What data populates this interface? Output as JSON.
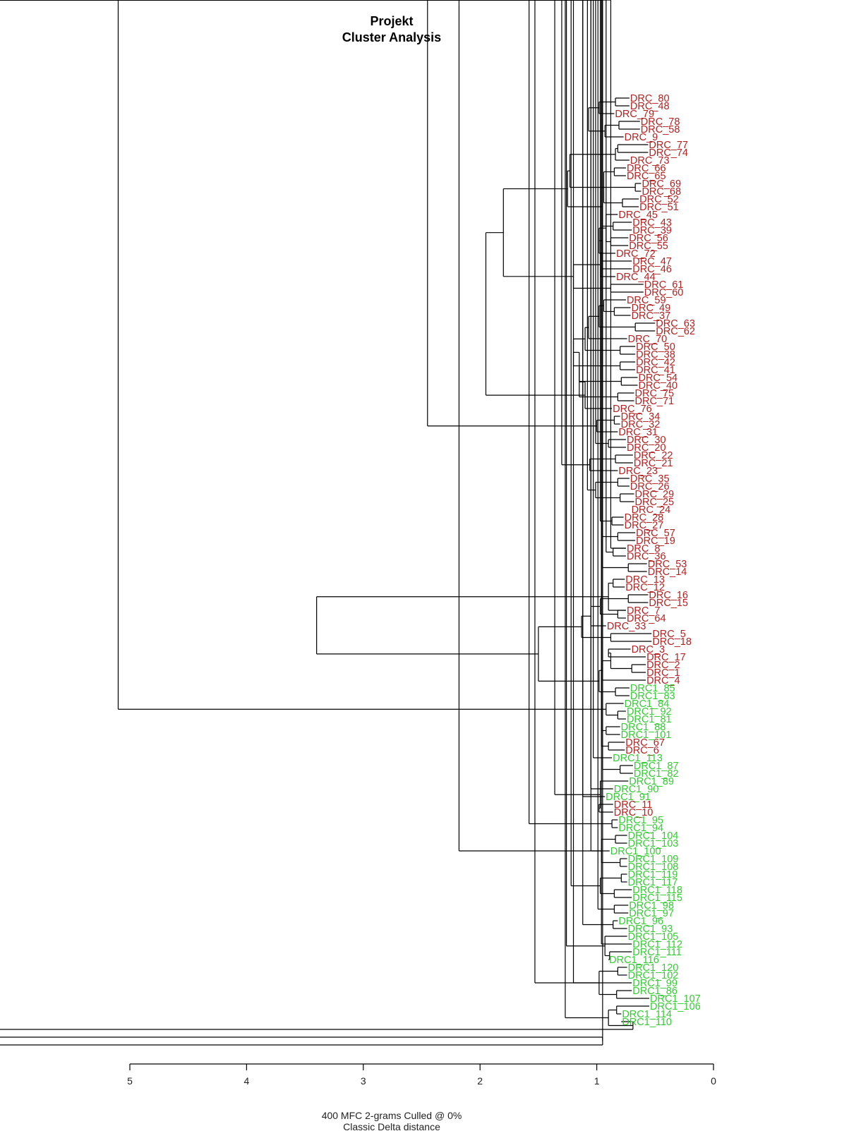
{
  "chart_data": {
    "type": "dendrogram",
    "title": "Projekt",
    "subtitle": "Cluster Analysis",
    "xlabel_line1": "400 MFC 2-grams Culled @ 0%",
    "xlabel_line2": "Classic Delta distance",
    "xlim": [
      5,
      0
    ],
    "ticks": [
      5,
      4,
      3,
      2,
      1,
      0
    ],
    "tick_labels": [
      "5",
      "4",
      "3",
      "2",
      "1",
      "0"
    ],
    "colors": {
      "DRC": "#b22222",
      "DRC1": "#33cc33"
    },
    "leaves": [
      "DRC_80",
      "DRC_48",
      "DRC_79",
      "DRC_78",
      "DRC_58",
      "DRC_9",
      "DRC_77",
      "DRC_74",
      "DRC_73",
      "DRC_66",
      "DRC_65",
      "DRC_69",
      "DRC_68",
      "DRC_52",
      "DRC_51",
      "DRC_45",
      "DRC_43",
      "DRC_39",
      "DRC_56",
      "DRC_55",
      "DRC_72",
      "DRC_47",
      "DRC_46",
      "DRC_44",
      "DRC_61",
      "DRC_60",
      "DRC_59",
      "DRC_49",
      "DRC_37",
      "DRC_63",
      "DRC_62",
      "DRC_70",
      "DRC_50",
      "DRC_38",
      "DRC_42",
      "DRC_41",
      "DRC_54",
      "DRC_40",
      "DRC_75",
      "DRC_71",
      "DRC_76",
      "DRC_34",
      "DRC_32",
      "DRC_31",
      "DRC_30",
      "DRC_20",
      "DRC_22",
      "DRC_21",
      "DRC_23",
      "DRC_35",
      "DRC_26",
      "DRC_29",
      "DRC_25",
      "DRC_24",
      "DRC_28",
      "DRC_27",
      "DRC_57",
      "DRC_19",
      "DRC_8",
      "DRC_36",
      "DRC_53",
      "DRC_14",
      "DRC_13",
      "DRC_12",
      "DRC_16",
      "DRC_15",
      "DRC_7",
      "DRC_64",
      "DRC_33",
      "DRC_5",
      "DRC_18",
      "DRC_3",
      "DRC_17",
      "DRC_2",
      "DRC_1",
      "DRC_4",
      "DRC1_85",
      "DRC1_83",
      "DRC1_84",
      "DRC1_92",
      "DRC1_81",
      "DRC1_88",
      "DRC1_101",
      "DRC_67",
      "DRC_6",
      "DRC1_113",
      "DRC1_87",
      "DRC1_82",
      "DRC1_89",
      "DRC1_90",
      "DRC1_91",
      "DRC_11",
      "DRC_10",
      "DRC1_95",
      "DRC1_94",
      "DRC1_104",
      "DRC1_103",
      "DRC1_100",
      "DRC1_109",
      "DRC1_108",
      "DRC1_119",
      "DRC1_117",
      "DRC1_118",
      "DRC1_115",
      "DRC1_98",
      "DRC1_97",
      "DRC1_96",
      "DRC1_93",
      "DRC1_105",
      "DRC1_112",
      "DRC1_111",
      "DRC1_116",
      "DRC1_120",
      "DRC1_102",
      "DRC1_99",
      "DRC1_86",
      "DRC1_107",
      "DRC1_106",
      "DRC1_114",
      "DRC1_110"
    ],
    "leaf_heights": [
      0.72,
      0.72,
      0.85,
      0.63,
      0.63,
      0.77,
      0.56,
      0.56,
      0.72,
      0.75,
      0.75,
      0.62,
      0.62,
      0.64,
      0.64,
      0.82,
      0.7,
      0.7,
      0.73,
      0.73,
      0.84,
      0.7,
      0.7,
      0.84,
      0.6,
      0.6,
      0.75,
      0.71,
      0.71,
      0.5,
      0.5,
      0.74,
      0.67,
      0.67,
      0.67,
      0.67,
      0.65,
      0.65,
      0.68,
      0.68,
      0.87,
      0.8,
      0.8,
      0.82,
      0.75,
      0.75,
      0.69,
      0.69,
      0.82,
      0.72,
      0.72,
      0.68,
      0.68,
      0.71,
      0.77,
      0.77,
      0.67,
      0.67,
      0.75,
      0.75,
      0.57,
      0.57,
      0.76,
      0.76,
      0.56,
      0.56,
      0.75,
      0.75,
      0.92,
      0.53,
      0.53,
      0.71,
      0.58,
      0.58,
      0.58,
      0.58,
      0.72,
      0.72,
      0.77,
      0.75,
      0.75,
      0.8,
      0.8,
      0.76,
      0.76,
      0.87,
      0.69,
      0.69,
      0.73,
      0.86,
      0.93,
      0.86,
      0.86,
      0.82,
      0.82,
      0.74,
      0.74,
      0.89,
      0.74,
      0.74,
      0.74,
      0.74,
      0.7,
      0.7,
      0.73,
      0.73,
      0.82,
      0.74,
      0.74,
      0.7,
      0.7,
      0.9,
      0.74,
      0.74,
      0.7,
      0.7,
      0.55,
      0.55,
      0.79,
      0.79
    ],
    "merges": [
      [
        -1,
        -2,
        0.84
      ],
      [
        -4,
        -5,
        0.81
      ],
      [
        -7,
        -8,
        0.82
      ],
      [
        -10,
        -11,
        0.85
      ],
      [
        -12,
        -13,
        0.67
      ],
      [
        -14,
        -15,
        0.78
      ],
      [
        -17,
        -18,
        0.86
      ],
      [
        -19,
        -20,
        0.88
      ],
      [
        -22,
        -23,
        0.96
      ],
      [
        -25,
        -26,
        0.88
      ],
      [
        -28,
        -29,
        0.85
      ],
      [
        -30,
        -31,
        0.67
      ],
      [
        -33,
        -34,
        0.8
      ],
      [
        -35,
        -36,
        0.8
      ],
      [
        -37,
        -38,
        0.79
      ],
      [
        -39,
        -40,
        0.82
      ],
      [
        -42,
        -43,
        0.85
      ],
      [
        -45,
        -46,
        0.9
      ],
      [
        -47,
        -48,
        0.84
      ],
      [
        -50,
        -51,
        0.82
      ],
      [
        -52,
        -53,
        0.8
      ],
      [
        -55,
        -56,
        0.87
      ],
      [
        -57,
        -58,
        0.82
      ],
      [
        -59,
        -60,
        0.86
      ],
      [
        -61,
        -62,
        0.73
      ],
      [
        -63,
        -64,
        0.86
      ],
      [
        -65,
        -66,
        0.73
      ],
      [
        -67,
        -68,
        0.82
      ],
      [
        -70,
        -71,
        0.88
      ],
      [
        -72,
        -73,
        0.9
      ],
      [
        -74,
        -75,
        0.7
      ],
      [
        -77,
        -78,
        0.84
      ],
      [
        -80,
        -81,
        0.82
      ],
      [
        -82,
        -83,
        0.92
      ],
      [
        -84,
        -85,
        0.9
      ],
      [
        -87,
        -88,
        0.8
      ],
      [
        -92,
        -93,
        0.98
      ],
      [
        -94,
        -95,
        0.87
      ],
      [
        -96,
        -97,
        0.84
      ],
      [
        -99,
        -100,
        0.8
      ],
      [
        -101,
        -102,
        0.79
      ],
      [
        -103,
        -104,
        0.85
      ],
      [
        -105,
        -106,
        0.85
      ],
      [
        -107,
        -108,
        0.86
      ],
      [
        -111,
        -112,
        0.89
      ],
      [
        -113,
        -114,
        0.82
      ],
      [
        -116,
        -117,
        0.83
      ],
      [
        -118,
        -119,
        0.83
      ],
      [
        -120,
        -121,
        0.69
      ],
      [
        -122,
        -123,
        0.95
      ],
      [
        1,
        -3,
        0.98
      ],
      [
        2,
        -6,
        0.93
      ],
      [
        3,
        -9,
        0.84
      ],
      [
        4,
        6,
        0.94
      ],
      [
        5,
        7,
        0.95
      ],
      [
        51,
        52,
        1.07
      ],
      [
        54,
        53,
        1.23
      ],
      [
        -16,
        8,
        0.92
      ],
      [
        58,
        -21,
        0.98
      ],
      [
        59,
        9,
        0.95
      ],
      [
        60,
        -24,
        0.97
      ],
      [
        61,
        10,
        1.2
      ],
      [
        55,
        57,
        1.25
      ],
      [
        63,
        62,
        1.8
      ],
      [
        -27,
        11,
        0.94
      ],
      [
        65,
        12,
        0.98
      ],
      [
        66,
        -32,
        1.07
      ],
      [
        67,
        13,
        1.1
      ],
      [
        68,
        14,
        1.2
      ],
      [
        69,
        15,
        1.15
      ],
      [
        70,
        16,
        1.15
      ],
      [
        71,
        -41,
        1.1
      ],
      [
        64,
        72,
        1.95
      ],
      [
        17,
        -44,
        1
      ],
      [
        75,
        18,
        1.01
      ],
      [
        19,
        -49,
        1.06
      ],
      [
        20,
        21,
        1.01
      ],
      [
        78,
        22,
        0.97
      ],
      [
        79,
        -59,
        0.88
      ],
      [
        80,
        23,
        0.95
      ],
      [
        81,
        24,
        0.92
      ],
      [
        82,
        25,
        0.95
      ],
      [
        77,
        83,
        1.08
      ],
      [
        76,
        84,
        1.3
      ],
      [
        74,
        85,
        2.45
      ],
      [
        26,
        -67,
        0.9
      ],
      [
        27,
        28,
        0.97
      ],
      [
        87,
        -69,
        1.05
      ],
      [
        88,
        29,
        1.13
      ],
      [
        30,
        31,
        0.88
      ],
      [
        -76,
        90,
        0.95
      ],
      [
        91,
        32,
        0.98
      ],
      [
        89,
        92,
        1.5
      ],
      [
        86,
        93,
        3.4
      ],
      [
        33,
        -79,
        0.92
      ],
      [
        96,
        34,
        0.96
      ],
      [
        97,
        35,
        0.96
      ],
      [
        98,
        36,
        0.95
      ],
      [
        99,
        -86,
        1.03
      ],
      [
        37,
        -89,
        0.97
      ],
      [
        101,
        -90,
        1.05
      ],
      [
        102,
        -91,
        1.12
      ],
      [
        100,
        103,
        1.36
      ],
      [
        104,
        38,
        1.58
      ],
      [
        39,
        40,
        0.96
      ],
      [
        106,
        -98,
        1.05
      ],
      [
        41,
        42,
        0.97
      ],
      [
        108,
        43,
        0.99
      ],
      [
        109,
        44,
        1.12
      ],
      [
        107,
        110,
        1.22
      ],
      [
        45,
        -109,
        0.93
      ],
      [
        112,
        -110,
        0.96
      ],
      [
        111,
        113,
        1.26
      ],
      [
        46,
        47,
        0.98
      ],
      [
        115,
        -115,
        1.2
      ],
      [
        48,
        49,
        0.9
      ],
      [
        117,
        50,
        0.95
      ],
      [
        116,
        118,
        1.27
      ],
      [
        114,
        119,
        1.53
      ],
      [
        105,
        120,
        2.18
      ],
      [
        95,
        121,
        5.1
      ]
    ]
  }
}
